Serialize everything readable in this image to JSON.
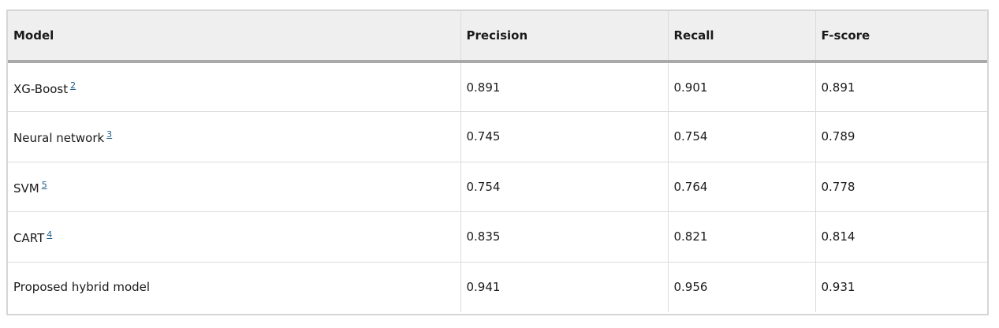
{
  "table": {
    "headers": [
      "Model",
      "Precision",
      "Recall",
      "F-score"
    ],
    "rows": [
      {
        "model": "XG-Boost",
        "ref": "2",
        "precision": "0.891",
        "recall": "0.901",
        "fscore": "0.891"
      },
      {
        "model": "Neural network",
        "ref": "3",
        "precision": "0.745",
        "recall": "0.754",
        "fscore": "0.789"
      },
      {
        "model": "SVM",
        "ref": "5",
        "precision": "0.754",
        "recall": "0.764",
        "fscore": "0.778"
      },
      {
        "model": "CART",
        "ref": "4",
        "precision": "0.835",
        "recall": "0.821",
        "fscore": "0.814"
      },
      {
        "model": "Proposed hybrid model",
        "ref": "",
        "precision": "0.941",
        "recall": "0.956",
        "fscore": "0.931"
      }
    ]
  }
}
